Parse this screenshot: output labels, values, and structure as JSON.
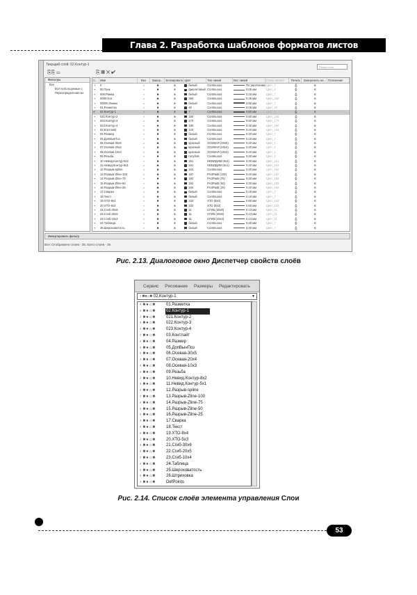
{
  "header": {
    "chapter_title": "Глава 2. Разработка шаблонов форматов листов"
  },
  "figure1": {
    "window_title": "Текущий слой: 02.Контур-1",
    "search_placeholder": "Поиск слоя",
    "toolbar_icons": [
      "new-layer-icon",
      "delete-layer-icon",
      "set-current-icon"
    ],
    "tree_header": "Фильтры",
    "tree_items": [
      "Все",
      "Все используемые с",
      "Переопределения вэ"
    ],
    "invert_filter_label": "Инвертировать фильтр",
    "status": "Все: Отображено слоев - 35, всего слоев - 35",
    "columns": [
      "С...",
      "Имя",
      "Вкл",
      "Замор...",
      "Блокировать",
      "Цвет",
      "Тип линий",
      "Вес линий",
      "Стиль печати",
      "Печать",
      "Заморозить на...",
      "Пояснение"
    ],
    "selected_row": 6,
    "rows": [
      [
        "0",
        "белый",
        "Continuous",
        "По умолчанию",
        "Цвет_7"
      ],
      [
        "00.Тонк",
        "фиолетовый",
        "Continuous",
        "0.05 мм",
        "Цвет_6"
      ],
      [
        "000.Рамка",
        "белый",
        "Continuous",
        "0.15 мм",
        "Цвет_7"
      ],
      [
        "0000.Dot",
        "250",
        "Continuous",
        "0.25 мм",
        "Цвет_250"
      ],
      [
        "00000.Линии",
        "белый",
        "Continuous",
        "0.80 мм",
        "Цвет_7"
      ],
      [
        "01.Разметка",
        "40",
        "Continuous",
        "0.05 мм",
        "Цвет_40"
      ],
      [
        "02.Контур-1",
        "7",
        "Continuous",
        "0.80 мм",
        "Цвет_7"
      ],
      [
        "021.Контур-2",
        "150",
        "Continuous",
        "0.60 мм",
        "Цвет_150"
      ],
      [
        "022.Контур-3",
        "170",
        "Continuous",
        "0.60 мм",
        "Цвет_170"
      ],
      [
        "023.Контур-4",
        "180",
        "Continuous",
        "0.40 мм",
        "Цвет_180"
      ],
      [
        "03.Контлайт",
        "134",
        "Continuous",
        "0.20 мм",
        "Цвет_134"
      ],
      [
        "04.Размер",
        "белый",
        "Continuous",
        "0.20 мм",
        "Цвет_7"
      ],
      [
        "05.ДопВынПоз",
        "белый",
        "Continuous",
        "0.18 мм",
        "Цвет_7"
      ],
      [
        "06.Осевая-30х5",
        "красный",
        "ОСЕВАЯ (30х5)",
        "0.20 мм",
        "Цвет_1"
      ],
      [
        "07.Осевая-20х4",
        "красный",
        "ОСЕВАЯ (20х4)",
        "0.20 мм",
        "Цвет_1"
      ],
      [
        "08.Осевая-10х3",
        "красный",
        "ОСЕВАЯ (10х3)",
        "0.20 мм",
        "Цвет_1"
      ],
      [
        "09.Резьба",
        "голубой",
        "Continuous",
        "0.20 мм",
        "Цвет_4"
      ],
      [
        "10.Невид.Контур-8х2",
        "161",
        "НЕВИДИМ (8х2)",
        "0.20 мм",
        "Цвет_161"
      ],
      [
        "11.Невид.Контур-5х1",
        "161",
        "НЕВИДИМ (5х1)",
        "0.20 мм",
        "Цвет_161"
      ],
      [
        "12.Разрыв-spline",
        "162",
        "Continuous",
        "0.20 мм",
        "Цвет_162"
      ],
      [
        "13.Разрыв-Zline-100",
        "187",
        "РАЗРЫВ (100)",
        "0.20 мм",
        "Цвет_187"
      ],
      [
        "14.Разрыв-Zline-75",
        "182",
        "РАЗРЫВ (75)",
        "0.20 мм",
        "Цвет_182"
      ],
      [
        "15.Разрыв-Zline-50",
        "192",
        "РАЗРЫВ (50)",
        "0.20 мм",
        "Цвет_192"
      ],
      [
        "16.Разрыв-Zline-25",
        "192",
        "РАЗРЫВ (25)",
        "0.20 мм",
        "Цвет_192"
      ],
      [
        "17.Сварка",
        "белый",
        "Continuous",
        "0.18 мм",
        "Цвет_7"
      ],
      [
        "18.Текст",
        "белый",
        "Continuous",
        "0.18 мм",
        "Цвет_7"
      ],
      [
        "19.ХТО-8х4",
        "232",
        "ХТО (8х4)",
        "0.60 мм",
        "Цвет_232"
      ],
      [
        "20.ХТО-5х3",
        "232",
        "ХТО (5х3)",
        "0.60 мм",
        "Цвет_232"
      ],
      [
        "21.Сгиб-30х6",
        "11",
        "СГИБ (30х6)",
        "0.13 мм",
        "Цвет_11"
      ],
      [
        "22.Сгиб-20х5",
        "11",
        "СГИБ (20х5)",
        "0.13 мм",
        "Цвет_11"
      ],
      [
        "23.Сгиб-10х4",
        "11",
        "СГИБ (10х4)",
        "0.13 мм",
        "Цвет_11"
      ],
      [
        "24.Таблица",
        "белый",
        "Continuous",
        "0.20 мм",
        "Цвет_7"
      ],
      [
        "25.Шероховатость",
        "белый",
        "Continuous",
        "0.20 мм",
        "Цвет_7"
      ],
      [
        "26.Штриховка",
        "24",
        "Continuous",
        "0.13 мм",
        "Цвет_24"
      ],
      [
        "DefPoints",
        "34",
        "Continuous",
        "0.05 мм",
        "Цвет_34"
      ]
    ],
    "caption_num": "Рис. 2.13.",
    "caption_text": " Диалоговое окно ",
    "caption_bold": "Диспетчер свойств слоёв"
  },
  "figure2": {
    "menu": [
      "Сервис",
      "Рисование",
      "Размеры",
      "Редактировать"
    ],
    "combo_value": "02.Контур-1",
    "selected_index": 1,
    "items": [
      "01.Разметка",
      "02.Контур-1",
      "021.Контур-2",
      "022.Контур-3",
      "023.Контур-4",
      "03.Контлайт",
      "04.Размер",
      "05.ДопВынПоз",
      "06.Осевая-30х5",
      "07.Осевая-20х4",
      "08.Осевая-10х3",
      "09.Резьба",
      "10.Невид.Контур-8х2",
      "11.Невид.Контур-5х1",
      "12.Разрыв-spline",
      "13.Разрыв-Zline-100",
      "14.Разрыв-Zline-75",
      "15.Разрыв-Zline-50",
      "16.Разрыв-Zline-25",
      "17.Сварка",
      "18.Текст",
      "19.ХТО-8х4",
      "20.ХТО-5х3",
      "21.Сгиб-30х6",
      "22.Сгиб-20х5",
      "23.Сгиб-10х4",
      "24.Таблица",
      "25.Шероховатость",
      "26.Штриховка",
      "DefPoints"
    ],
    "caption_num": "Рис. 2.14.",
    "caption_text": " Список слоёв элемента управления ",
    "caption_bold": "Слои"
  },
  "footer": {
    "page_number": "53"
  }
}
